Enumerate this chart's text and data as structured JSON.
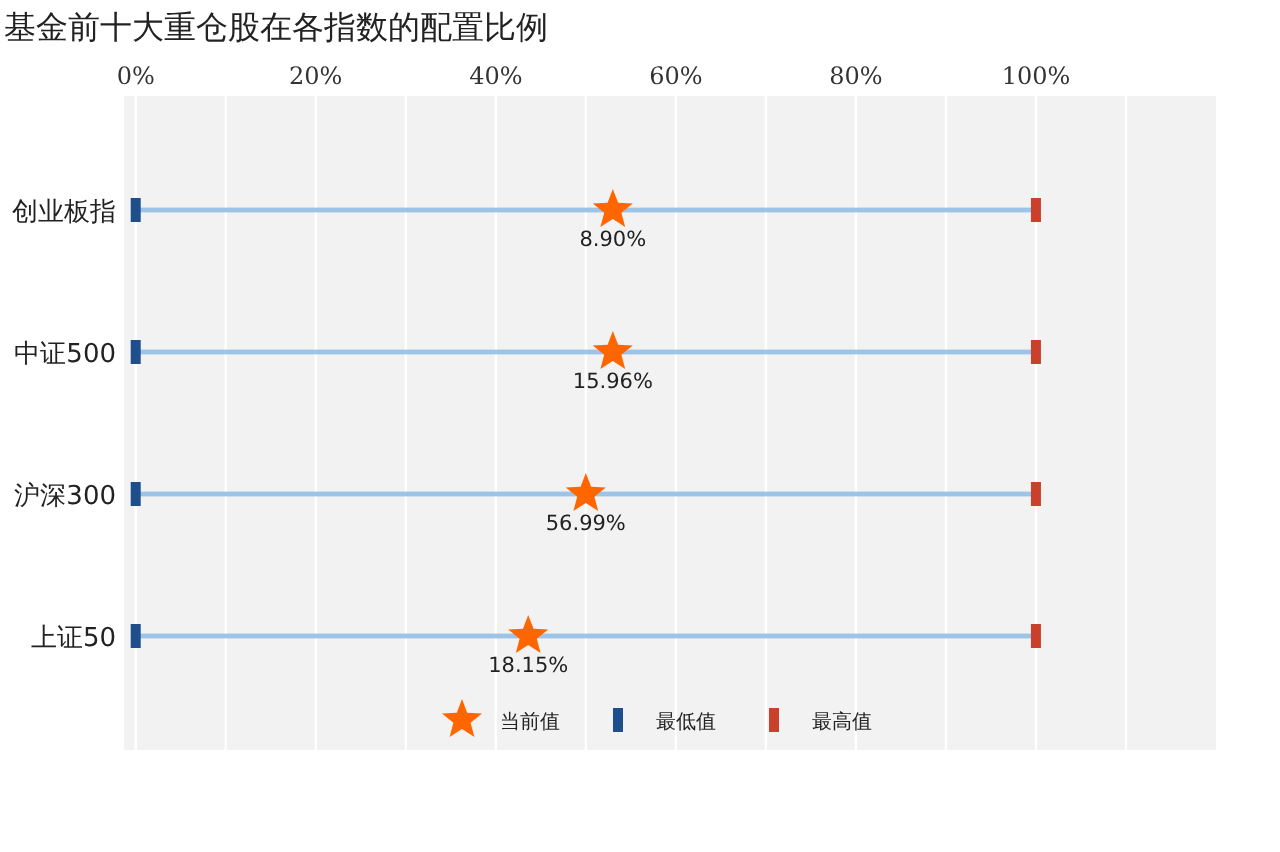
{
  "chart_data": {
    "type": "scatter",
    "title": "基金前十大重仓股在各指数的配置比例",
    "orientation": "horizontal",
    "categories": [
      "创业板指",
      "中证500",
      "沪深300",
      "上证50"
    ],
    "xlim": [
      -1.3,
      120
    ],
    "xticks": [
      {
        "value": 0,
        "label": "0%"
      },
      {
        "value": 10,
        "label": null
      },
      {
        "value": 20,
        "label": "20%"
      },
      {
        "value": 30,
        "label": null
      },
      {
        "value": 40,
        "label": "40%"
      },
      {
        "value": 50,
        "label": null
      },
      {
        "value": 60,
        "label": "60%"
      },
      {
        "value": 70,
        "label": null
      },
      {
        "value": 80,
        "label": "80%"
      },
      {
        "value": 90,
        "label": null
      },
      {
        "value": 100,
        "label": "100%"
      },
      {
        "value": 110,
        "label": null
      }
    ],
    "grid": "x",
    "legend": "bottom",
    "annotations": [
      {
        "text": "8.90%",
        "x": 53,
        "y": "创业板指"
      },
      {
        "text": "15.96%",
        "x": 53,
        "y": "中证500"
      },
      {
        "text": "56.99%",
        "x": 50,
        "y": "沪深300"
      },
      {
        "text": "18.15%",
        "x": 43.6,
        "y": "上证50"
      }
    ],
    "series": [
      {
        "type": "bar",
        "color": "#9dc3e6",
        "values": [
          100,
          100,
          100,
          100
        ]
      },
      {
        "name": "当前值",
        "color": "#ff6600",
        "marker": "star",
        "values": [
          53,
          53,
          50,
          43.6
        ]
      },
      {
        "name": "最低值",
        "color": "#1f4e8c",
        "marker": "square",
        "values": [
          0,
          0,
          0,
          0
        ]
      },
      {
        "name": "最高值",
        "color": "#c9402b",
        "marker": "square",
        "values": [
          100,
          100,
          100,
          100
        ]
      }
    ]
  }
}
